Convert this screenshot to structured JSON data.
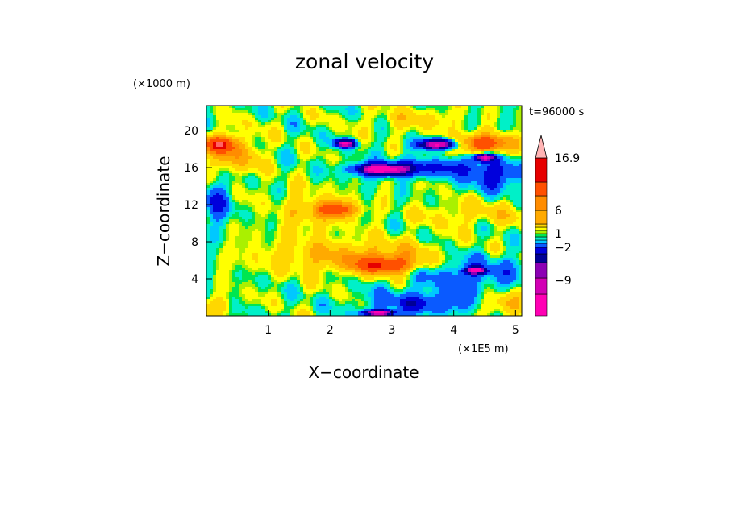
{
  "chart_data": {
    "type": "heatmap",
    "title": "zonal velocity",
    "xlabel": "X−coordinate",
    "ylabel": "Z−coordinate",
    "x_unit": "(×1E5 m)",
    "y_unit": "(×1000 m)",
    "time_label": "t=96000 s",
    "x_ticks": [
      "1",
      "2",
      "3",
      "4",
      "5"
    ],
    "y_ticks": [
      "4",
      "8",
      "12",
      "16",
      "20"
    ],
    "xlim": [
      0,
      5.1
    ],
    "ylim": [
      0,
      22.7
    ],
    "colorbar": {
      "tick_labels": [
        "16.9",
        "6",
        "1",
        "−2",
        "−9"
      ],
      "levels": [
        -9,
        -2,
        1,
        6,
        16.9
      ],
      "colors": [
        "#ff00b4",
        "#d200b4",
        "#8c00b4",
        "#000096",
        "#0000dc",
        "#0a5aff",
        "#00c8ff",
        "#00f0c8",
        "#00e650",
        "#aaf000",
        "#ffff00",
        "#ffd700",
        "#ffaa00",
        "#ff8c00",
        "#ff5000",
        "#e60000",
        "#ff6464",
        "#ffb4b4"
      ]
    },
    "fields": {
      "background": "#aaf000",
      "zones": [
        {
          "x": 2.75,
          "z": 6.3,
          "dx": 1.7,
          "dz": 1.8,
          "v": 3
        },
        {
          "x": 2.9,
          "z": 5.5,
          "dx": 0.45,
          "dz": 0.9,
          "v": 6
        },
        {
          "x": 1.6,
          "z": 11.0,
          "dx": 0.5,
          "dz": 2.8,
          "v": 1.5
        },
        {
          "x": 2.1,
          "z": 11.5,
          "dx": 0.35,
          "dz": 0.9,
          "v": 6
        },
        {
          "x": 0.4,
          "z": 17.5,
          "dx": 0.45,
          "dz": 2.2,
          "v": 3
        },
        {
          "x": 0.2,
          "z": 18.5,
          "dx": 0.25,
          "dz": 0.8,
          "v": 6
        },
        {
          "x": 4.5,
          "z": 18.6,
          "dx": 0.5,
          "dz": 1.0,
          "v": 6
        },
        {
          "x": 3.4,
          "z": 21.2,
          "dx": 0.7,
          "dz": 1.2,
          "v": 1.5
        },
        {
          "x": 4.4,
          "z": 11.0,
          "dx": 1.0,
          "dz": 1.4,
          "v": 1.5
        },
        {
          "x": 4.85,
          "z": 1.5,
          "dx": 0.35,
          "dz": 1.2,
          "v": 3
        },
        {
          "x": 0.2,
          "z": 1.2,
          "dx": 0.3,
          "dz": 1.0,
          "v": 1.5
        },
        {
          "x": 4.2,
          "z": 5.0,
          "dx": 1.0,
          "dz": 2.2,
          "v": -3
        },
        {
          "x": 3.5,
          "z": 1.4,
          "dx": 0.9,
          "dz": 1.2,
          "v": -3
        },
        {
          "x": 0.15,
          "z": 12.5,
          "dx": 0.2,
          "dz": 2.5,
          "v": -3
        },
        {
          "x": 3.6,
          "z": 16.0,
          "dx": 1.0,
          "dz": 1.0,
          "v": -3
        },
        {
          "x": 4.7,
          "z": 15.0,
          "dx": 0.5,
          "dz": 1.5,
          "v": -3
        },
        {
          "x": 3.75,
          "z": 18.5,
          "dx": 0.3,
          "dz": 0.55,
          "v": -10
        },
        {
          "x": 4.5,
          "z": 17.1,
          "dx": 0.15,
          "dz": 0.45,
          "v": -10
        },
        {
          "x": 2.85,
          "z": 15.8,
          "dx": 0.4,
          "dz": 0.6,
          "v": -10
        },
        {
          "x": 2.25,
          "z": 18.6,
          "dx": 0.15,
          "dz": 0.4,
          "v": -10
        },
        {
          "x": 4.35,
          "z": 4.9,
          "dx": 0.15,
          "dz": 0.35,
          "v": -10
        },
        {
          "x": 2.8,
          "z": 0.3,
          "dx": 0.25,
          "dz": 0.35,
          "v": -10
        }
      ]
    }
  }
}
